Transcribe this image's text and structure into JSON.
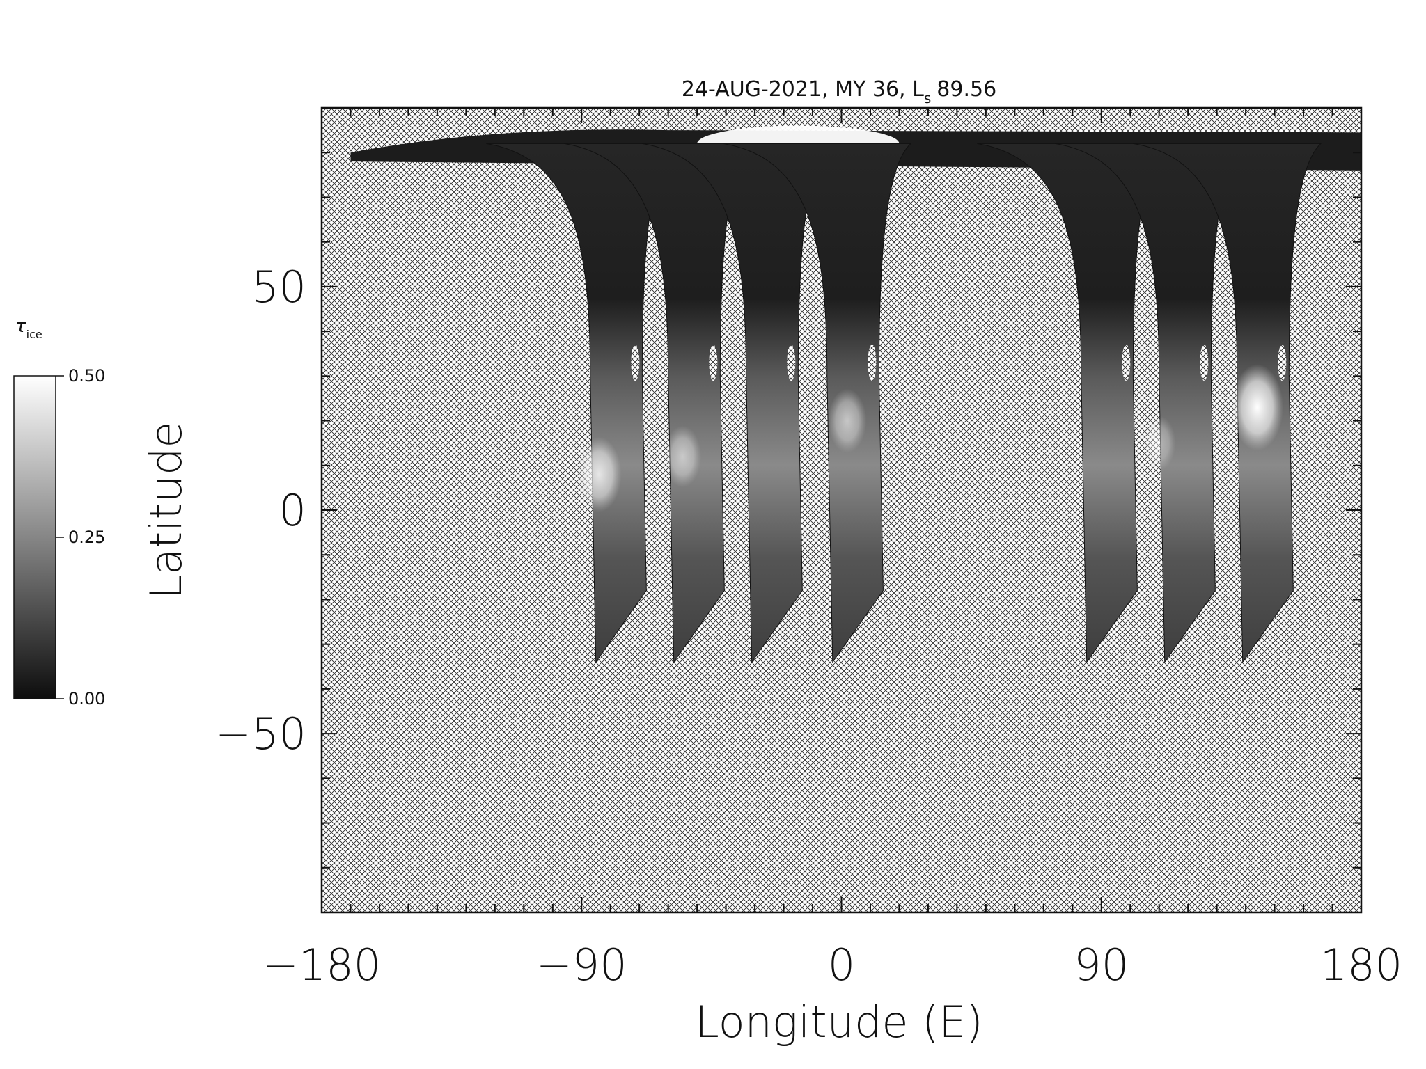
{
  "chart_data": {
    "type": "heatmap",
    "title_main": "24-AUG-2021, MY 36,  L",
    "title_sub": "s",
    "title_ls": "89.56",
    "xlabel": "Longitude (E)",
    "ylabel": "Latitude",
    "xlim": [
      -180,
      180
    ],
    "ylim": [
      -90,
      90
    ],
    "x_ticks": [
      -180,
      -90,
      0,
      90,
      180
    ],
    "x_tick_labels": [
      "−180",
      "−90",
      "0",
      "90",
      "180"
    ],
    "y_ticks": [
      -50,
      0,
      50
    ],
    "y_tick_labels": [
      "−50",
      "0",
      "50"
    ],
    "missing_data_pattern": "crosshatch",
    "colorbar": {
      "label_symbol": "τ",
      "label_sub": "ice",
      "range": [
        0.0,
        0.5
      ],
      "ticks": [
        0.0,
        0.25,
        0.5
      ],
      "tick_labels": [
        "0.00",
        "0.25",
        "0.50"
      ],
      "colormap": "grayscale"
    },
    "swaths": [
      {
        "center_lon": -78,
        "lat_min": -34,
        "lat_max": 82
      },
      {
        "center_lon": -51,
        "lat_min": -34,
        "lat_max": 82
      },
      {
        "center_lon": -24,
        "lat_min": -34,
        "lat_max": 82
      },
      {
        "center_lon": 4,
        "lat_min": -34,
        "lat_max": 82
      },
      {
        "center_lon": 92,
        "lat_min": -34,
        "lat_max": 82
      },
      {
        "center_lon": 119,
        "lat_min": -34,
        "lat_max": 82
      },
      {
        "center_lon": 146,
        "lat_min": -34,
        "lat_max": 82
      }
    ],
    "bright_regions": [
      {
        "lon": -84,
        "lat": 8,
        "value": 0.4
      },
      {
        "lon": 144,
        "lat": 23,
        "value": 0.5
      },
      {
        "lon": 2,
        "lat": 20,
        "value": 0.3
      },
      {
        "lon": -55,
        "lat": 12,
        "value": 0.28
      },
      {
        "lon": 110,
        "lat": 15,
        "value": 0.22
      }
    ],
    "polar_cap": {
      "lat_min": 78,
      "lat_max": 86,
      "value": 0.5
    }
  }
}
